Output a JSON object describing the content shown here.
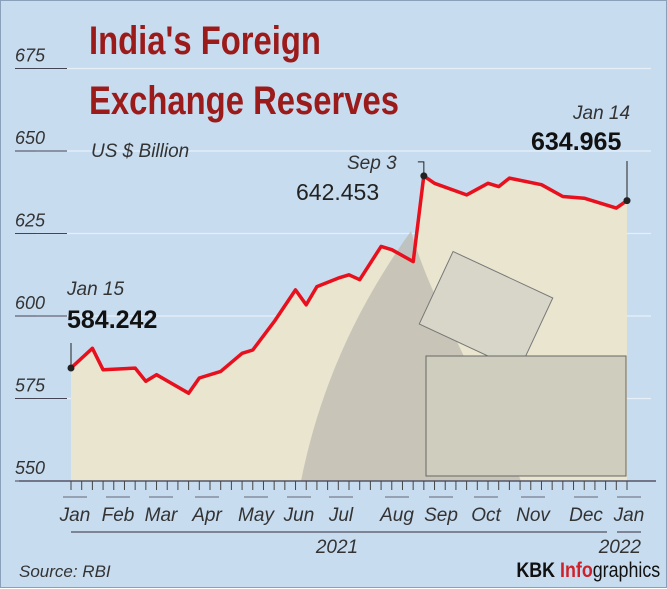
{
  "title_line1": "India's Foreign",
  "title_line2": "Exchange Reserves",
  "subtitle": "US $ Billion",
  "source": "Source: RBI",
  "brand": {
    "kbk": "KBK",
    "info": "Info",
    "graphics": "graphics"
  },
  "colors": {
    "background": "#c8dcf0",
    "line": "#e8101c",
    "title": "#9b1b1b",
    "brand_accent": "#d0202a"
  },
  "annotations": {
    "start": {
      "date": "Jan 15",
      "value": "584.242"
    },
    "peak": {
      "date": "Sep 3",
      "value": "642.453"
    },
    "end": {
      "date": "Jan 14",
      "value": "634.965"
    }
  },
  "chart_data": {
    "type": "line",
    "title": "India's Foreign Exchange Reserves",
    "ylabel": "US $ Billion",
    "ylim": [
      550,
      675
    ],
    "yticks": [
      550,
      575,
      600,
      625,
      650,
      675
    ],
    "grid": true,
    "month_labels": [
      "Jan",
      "Feb",
      "Mar",
      "Apr",
      "May",
      "Jun",
      "Jul",
      "Aug",
      "Sep",
      "Oct",
      "Nov",
      "Dec",
      "Jan"
    ],
    "year_labels": [
      "2021",
      "2022"
    ],
    "x": [
      "2021-01-15",
      "2021-01-29",
      "2021-02-05",
      "2021-02-26",
      "2021-03-05",
      "2021-03-12",
      "2021-04-02",
      "2021-04-09",
      "2021-04-23",
      "2021-05-07",
      "2021-05-14",
      "2021-05-28",
      "2021-06-11",
      "2021-06-18",
      "2021-06-25",
      "2021-07-09",
      "2021-07-16",
      "2021-07-23",
      "2021-08-06",
      "2021-08-13",
      "2021-08-27",
      "2021-09-03",
      "2021-09-10",
      "2021-10-01",
      "2021-10-15",
      "2021-10-22",
      "2021-10-29",
      "2021-11-19",
      "2021-12-03",
      "2021-12-17",
      "2022-01-07",
      "2022-01-14"
    ],
    "values": [
      584.242,
      590.2,
      583.7,
      584.2,
      580.2,
      582.2,
      576.6,
      581.2,
      583.2,
      588.7,
      589.7,
      598.3,
      607.9,
      603.4,
      608.9,
      611.5,
      612.5,
      611.0,
      621.1,
      620.1,
      616.5,
      642.453,
      640.2,
      636.7,
      640.2,
      639.2,
      641.8,
      639.8,
      636.2,
      635.7,
      632.7,
      634.965
    ]
  }
}
